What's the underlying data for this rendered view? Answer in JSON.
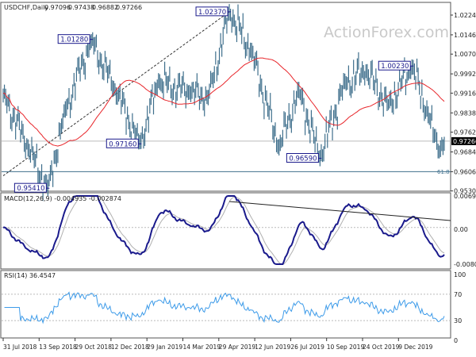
{
  "chart_data": {
    "type": "line",
    "symbol_header": "USDCHF,Daily",
    "ohlc": [
      "0.97096",
      "0.97438",
      "0.96882",
      "0.97266"
    ],
    "watermark": "ActionForex.com",
    "price_axis": [
      "1.02240",
      "1.01460",
      "1.00700",
      "0.99920",
      "0.99160",
      "0.98380",
      "0.97620",
      "0.96840",
      "0.96060",
      "0.95300"
    ],
    "price_range": [
      0.953,
      1.0224
    ],
    "last_price": "0.97266",
    "last_price_value": 0.97266,
    "fib_label": "61.8",
    "fib_level": 0.9606,
    "pivots": [
      {
        "bar": 0,
        "price": 0.9914
      },
      {
        "bar": 20,
        "price": 0.97
      },
      {
        "bar": 36,
        "price": 0.9541
      },
      {
        "bar": 50,
        "price": 0.985
      },
      {
        "bar": 71,
        "price": 1.0128
      },
      {
        "bar": 90,
        "price": 0.993
      },
      {
        "bar": 110,
        "price": 0.9716
      },
      {
        "bar": 125,
        "price": 0.996
      },
      {
        "bar": 150,
        "price": 0.992
      },
      {
        "bar": 165,
        "price": 0.99
      },
      {
        "bar": 182,
        "price": 1.0237
      },
      {
        "bar": 200,
        "price": 1.008
      },
      {
        "bar": 222,
        "price": 0.97
      },
      {
        "bar": 238,
        "price": 0.993
      },
      {
        "bar": 255,
        "price": 0.9659
      },
      {
        "bar": 275,
        "price": 0.996
      },
      {
        "bar": 292,
        "price": 1.0
      },
      {
        "bar": 310,
        "price": 0.987
      },
      {
        "bar": 329,
        "price": 1.0023
      },
      {
        "bar": 342,
        "price": 0.983
      },
      {
        "bar": 351,
        "price": 0.9688
      },
      {
        "bar": 355,
        "price": 0.97266
      }
    ],
    "annotations": [
      {
        "text": "1.02370",
        "bar": 182,
        "price": 1.0237
      },
      {
        "text": "1.01280",
        "bar": 71,
        "price": 1.0128
      },
      {
        "text": "0.97160",
        "bar": 110,
        "price": 0.9716
      },
      {
        "text": "0.96590",
        "bar": 255,
        "price": 0.9659
      },
      {
        "text": "1.00230",
        "bar": 329,
        "price": 1.0023
      },
      {
        "text": "0.95410",
        "bar": 36,
        "price": 0.9541
      }
    ],
    "x_tick_labels": [
      "31 Jul 2018",
      "13 Sep 2018",
      "29 Oct 2018",
      "12 Dec 2018",
      "29 Jan 2019",
      "14 Mar 2019",
      "29 Apr 2019",
      "12 Jun 2019",
      "26 Jul 2019",
      "10 Sep 2019",
      "24 Oct 2019",
      "9 Dec 2019"
    ],
    "macd": {
      "label": "MACD(12,26,9) -0.004935 -0.002874",
      "axis": [
        "0.006927",
        "0.00",
        "-0.008049"
      ],
      "range": [
        -0.008049,
        0.006927
      ]
    },
    "rsi": {
      "label": "RSI(14) 36.4547",
      "axis": [
        "100",
        "70",
        "30",
        "0"
      ],
      "levels": [
        70,
        30
      ]
    },
    "colors": {
      "bars": "#3f6f8c",
      "ma": "#e8262b",
      "macd": "#1a1a8c",
      "signal": "#b0b0b0",
      "rsi": "#3d9be9",
      "label": "#1a1a8c"
    }
  }
}
